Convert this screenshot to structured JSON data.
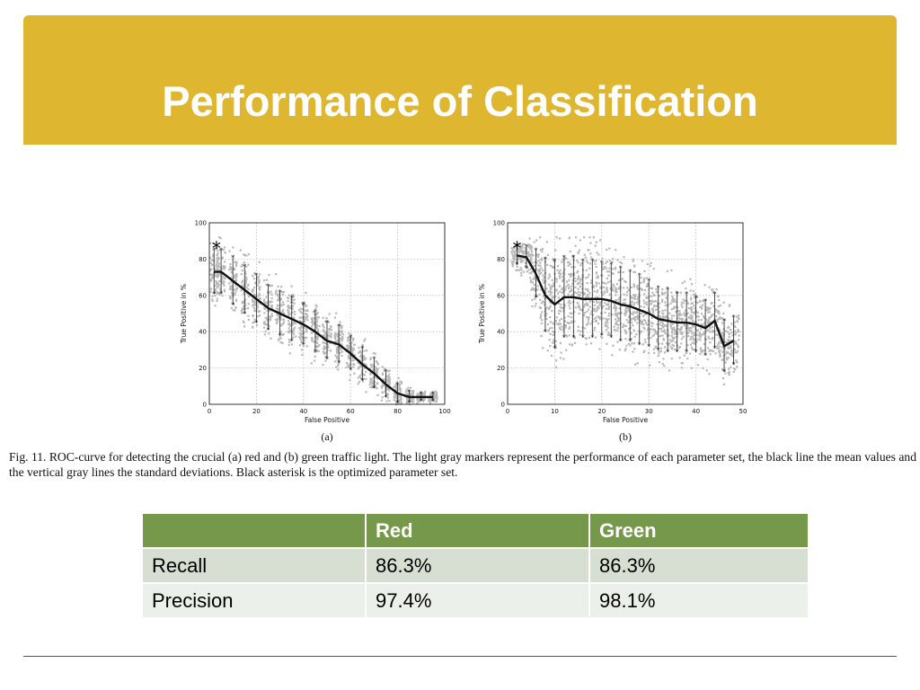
{
  "slide": {
    "title": "Performance of Classification"
  },
  "figure": {
    "caption": "Fig. 11.   ROC-curve for detecting the crucial (a) red and (b) green traffic light. The light gray markers represent the performance of each parameter set, the black line the mean values and the vertical gray lines the standard deviations. Black asterisk is the optimized parameter set."
  },
  "table": {
    "headers": [
      "",
      "Red",
      "Green"
    ],
    "rows": [
      [
        "Recall",
        "86.3%",
        "86.3%"
      ],
      [
        "Precision",
        "97.4%",
        "98.1%"
      ]
    ]
  },
  "colors": {
    "banner": "#dfb630",
    "table_header": "#76984b",
    "row_odd": "#d7dfd3",
    "row_even": "#ecf0ea"
  },
  "chart_data": [
    {
      "type": "line",
      "panel_label": "(a)",
      "xlabel": "False Positive",
      "ylabel": "True Positive in %",
      "xlim": [
        0,
        100
      ],
      "ylim": [
        0,
        100
      ],
      "xticks": [
        "0",
        "20",
        "40",
        "60",
        "80",
        "100"
      ],
      "yticks": [
        "0",
        "20",
        "40",
        "60",
        "80",
        "100"
      ],
      "grid": true,
      "series": [
        {
          "x": [
            2,
            5,
            10,
            15,
            20,
            25,
            30,
            35,
            40,
            45,
            50,
            55,
            60,
            65,
            70,
            75,
            80,
            85,
            90,
            95
          ],
          "y": [
            73,
            73,
            68,
            63,
            58,
            53,
            50,
            47,
            44,
            40,
            35,
            33,
            28,
            22,
            17,
            11,
            6,
            4,
            4,
            4
          ],
          "std": [
            12,
            12,
            13,
            13,
            13,
            12,
            12,
            12,
            11,
            11,
            10,
            10,
            9,
            9,
            8,
            7,
            5,
            3,
            2,
            2
          ]
        }
      ],
      "optimized_point": {
        "x": 3,
        "y": 86
      }
    },
    {
      "type": "line",
      "panel_label": "(b)",
      "xlabel": "False Positive",
      "ylabel": "True Positive in %",
      "xlim": [
        0,
        50
      ],
      "ylim": [
        0,
        100
      ],
      "xticks": [
        "0",
        "10",
        "20",
        "30",
        "40",
        "50"
      ],
      "yticks": [
        "0",
        "20",
        "40",
        "60",
        "80",
        "100"
      ],
      "grid": true,
      "series": [
        {
          "x": [
            2,
            4,
            6,
            8,
            10,
            12,
            14,
            16,
            18,
            20,
            22,
            24,
            26,
            28,
            30,
            32,
            34,
            36,
            38,
            40,
            42,
            44,
            46,
            48
          ],
          "y": [
            82,
            81,
            72,
            60,
            55,
            59,
            59,
            58,
            58,
            58,
            57,
            55,
            54,
            52,
            50,
            47,
            46,
            45,
            45,
            44,
            42,
            46,
            32,
            35
          ],
          "std": [
            5,
            6,
            13,
            20,
            24,
            22,
            22,
            21,
            21,
            20,
            20,
            20,
            19,
            19,
            18,
            17,
            17,
            16,
            16,
            15,
            15,
            15,
            14,
            13
          ]
        }
      ],
      "optimized_point": {
        "x": 2,
        "y": 86
      }
    }
  ]
}
